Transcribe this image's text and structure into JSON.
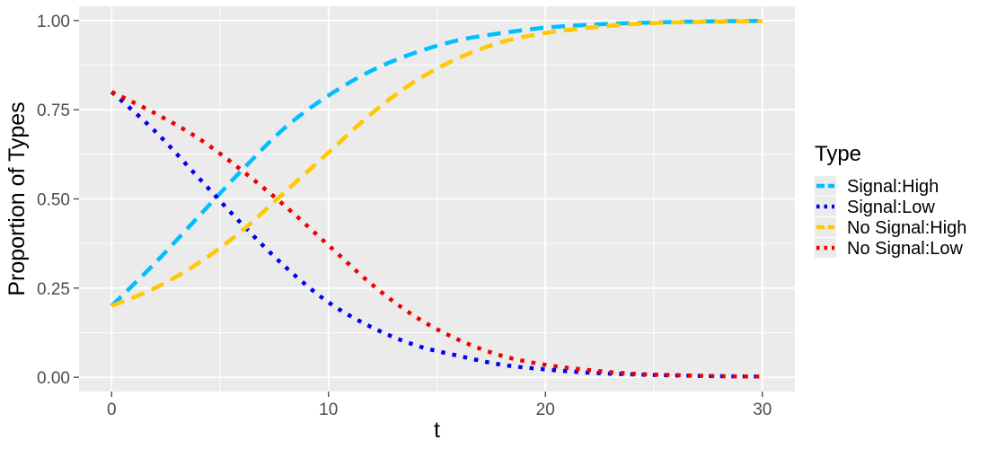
{
  "chart_data": {
    "type": "line",
    "xlabel": "t",
    "ylabel": "Proportion of Types",
    "xlim": [
      -1.5,
      31.5
    ],
    "ylim": [
      -0.04,
      1.04
    ],
    "x_ticks": [
      0,
      10,
      20,
      30
    ],
    "x_tick_labels": [
      "0",
      "10",
      "20",
      "30"
    ],
    "x_minor_ticks": [
      5,
      15,
      25
    ],
    "y_ticks": [
      0,
      0.25,
      0.5,
      0.75,
      1.0
    ],
    "y_tick_labels": [
      "0.00",
      "0.25",
      "0.50",
      "0.75",
      "1.00"
    ],
    "y_minor_ticks": [
      0.125,
      0.375,
      0.625,
      0.875
    ],
    "grid": true,
    "panel_background": "#ebebeb",
    "legend": {
      "title": "Type",
      "position": "right"
    },
    "series": [
      {
        "name": "Signal:High",
        "color": "#00bfff",
        "linestyle": "dashed",
        "x": [
          0,
          2,
          4,
          6,
          8,
          10,
          12,
          14,
          16,
          18,
          20,
          22,
          24,
          26,
          28,
          30
        ],
        "values": [
          0.2,
          0.32,
          0.45,
          0.58,
          0.7,
          0.79,
          0.86,
          0.91,
          0.945,
          0.965,
          0.98,
          0.988,
          0.993,
          0.996,
          0.998,
          0.999
        ]
      },
      {
        "name": "Signal:Low",
        "color": "#0000ee",
        "linestyle": "dotted",
        "x": [
          0,
          2,
          4,
          6,
          8,
          10,
          12,
          14,
          16,
          18,
          20,
          22,
          24,
          26,
          28,
          30
        ],
        "values": [
          0.8,
          0.69,
          0.56,
          0.43,
          0.31,
          0.21,
          0.14,
          0.09,
          0.06,
          0.035,
          0.022,
          0.013,
          0.008,
          0.005,
          0.003,
          0.002
        ]
      },
      {
        "name": "No Signal:High",
        "color": "#ffc800",
        "linestyle": "dashed",
        "x": [
          0,
          2,
          4,
          6,
          8,
          10,
          12,
          14,
          16,
          18,
          20,
          22,
          24,
          26,
          28,
          30
        ],
        "values": [
          0.2,
          0.25,
          0.32,
          0.41,
          0.52,
          0.63,
          0.74,
          0.83,
          0.895,
          0.94,
          0.965,
          0.98,
          0.99,
          0.995,
          0.997,
          0.998
        ]
      },
      {
        "name": "No Signal:Low",
        "color": "#ee0000",
        "linestyle": "dotted",
        "x": [
          0,
          2,
          4,
          6,
          8,
          10,
          12,
          14,
          16,
          18,
          20,
          22,
          24,
          26,
          28,
          30
        ],
        "values": [
          0.8,
          0.74,
          0.67,
          0.58,
          0.48,
          0.37,
          0.26,
          0.17,
          0.105,
          0.06,
          0.035,
          0.02,
          0.01,
          0.006,
          0.003,
          0.002
        ]
      }
    ]
  }
}
